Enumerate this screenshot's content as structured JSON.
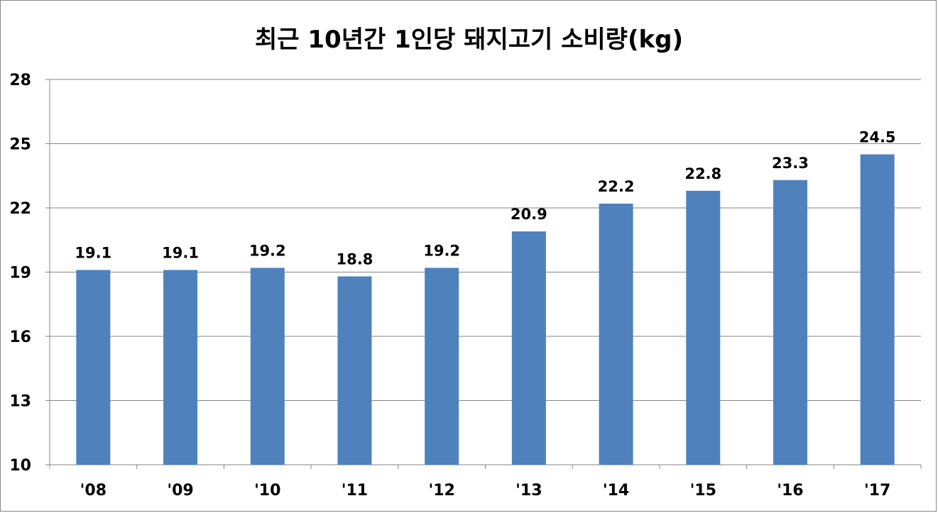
{
  "chart_data": {
    "type": "bar",
    "title": "최근 10년간 1인당 돼지고기 소비량(kg)",
    "xlabel": "",
    "ylabel": "",
    "categories": [
      "'08",
      "'09",
      "'10",
      "'11",
      "'12",
      "'13",
      "'14",
      "'15",
      "'16",
      "'17"
    ],
    "values": [
      19.1,
      19.1,
      19.2,
      18.8,
      19.2,
      20.9,
      22.2,
      22.8,
      23.3,
      24.5
    ],
    "data_labels": [
      "19.1",
      "19.1",
      "19.2",
      "18.8",
      "19.2",
      "20.9",
      "22.2",
      "22.8",
      "23.3",
      "24.5"
    ],
    "ylim": [
      10,
      28
    ],
    "yticks": [
      10,
      13,
      16,
      19,
      22,
      25,
      28
    ],
    "grid": true,
    "legend": "none",
    "bar_color": "#4F81BD",
    "grid_color": "#868686"
  }
}
